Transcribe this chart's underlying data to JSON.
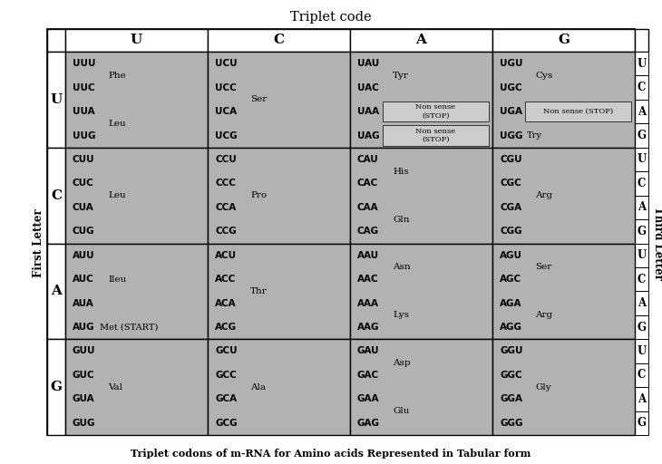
{
  "title": "Triplet code",
  "subtitle": "Triplet codons of m-RNA for Amino acids Represented in Tabular form",
  "gray": "#b2b2b2",
  "white": "#ffffff",
  "stop_gray": "#cccccc",
  "first_letter_label": "First Letter",
  "third_letter_label": "Third Letter",
  "col_headers": [
    "U",
    "C",
    "A",
    "G"
  ],
  "row_headers": [
    "U",
    "C",
    "A",
    "G"
  ],
  "third_labels": [
    "U",
    "C",
    "A",
    "G"
  ],
  "cells": {
    "UU": {
      "codons": [
        "UUU",
        "UUC",
        "UUA",
        "UUG"
      ],
      "groups": [
        {
          "idx": [
            0,
            1
          ],
          "aa": "Phe"
        },
        {
          "idx": [
            2,
            3
          ],
          "aa": "Leu"
        }
      ]
    },
    "UC": {
      "codons": [
        "UCU",
        "UCC",
        "UCA",
        "UCG"
      ],
      "groups": [
        {
          "idx": [
            0,
            1,
            2,
            3
          ],
          "aa": "Ser"
        }
      ]
    },
    "UA": {
      "codons": [
        "UAU",
        "UAC",
        "UAA",
        "UAG"
      ],
      "groups": [
        {
          "idx": [
            0,
            1
          ],
          "aa": "Tyr"
        },
        {
          "idx": [
            2
          ],
          "aa": "Non sense\n(STOP)",
          "stop": true
        },
        {
          "idx": [
            3
          ],
          "aa": "Non sense\n(STOP)",
          "stop": true
        }
      ]
    },
    "UG": {
      "codons": [
        "UGU",
        "UGC",
        "UGA",
        "UGG"
      ],
      "groups": [
        {
          "idx": [
            0,
            1
          ],
          "aa": "Cys"
        },
        {
          "idx": [
            2
          ],
          "aa": "Non sense (STOP)",
          "stop": true,
          "inline": true
        },
        {
          "idx": [
            3
          ],
          "aa": "Try",
          "bare": true
        }
      ]
    },
    "CU": {
      "codons": [
        "CUU",
        "CUC",
        "CUA",
        "CUG"
      ],
      "groups": [
        {
          "idx": [
            0,
            1,
            2,
            3
          ],
          "aa": "Leu"
        }
      ]
    },
    "CC": {
      "codons": [
        "CCU",
        "CCC",
        "CCA",
        "CCG"
      ],
      "groups": [
        {
          "idx": [
            0,
            1,
            2,
            3
          ],
          "aa": "Pro"
        }
      ]
    },
    "CA": {
      "codons": [
        "CAU",
        "CAC",
        "CAA",
        "CAG"
      ],
      "groups": [
        {
          "idx": [
            0,
            1
          ],
          "aa": "His"
        },
        {
          "idx": [
            2,
            3
          ],
          "aa": "Gln"
        }
      ]
    },
    "CG": {
      "codons": [
        "CGU",
        "CGC",
        "CGA",
        "CGG"
      ],
      "groups": [
        {
          "idx": [
            0,
            1,
            2,
            3
          ],
          "aa": "Arg"
        }
      ]
    },
    "AU": {
      "codons": [
        "AUU",
        "AUC",
        "AUA",
        "AUG"
      ],
      "groups": [
        {
          "idx": [
            0,
            1,
            2
          ],
          "aa": "Ileu"
        },
        {
          "idx": [
            3
          ],
          "aa": "Met (START)",
          "bare": true
        }
      ]
    },
    "AC": {
      "codons": [
        "ACU",
        "ACC",
        "ACA",
        "ACG"
      ],
      "groups": [
        {
          "idx": [
            0,
            1,
            2,
            3
          ],
          "aa": "Thr"
        }
      ]
    },
    "AA": {
      "codons": [
        "AAU",
        "AAC",
        "AAA",
        "AAG"
      ],
      "groups": [
        {
          "idx": [
            0,
            1
          ],
          "aa": "Asn"
        },
        {
          "idx": [
            2,
            3
          ],
          "aa": "Lys"
        }
      ]
    },
    "AG": {
      "codons": [
        "AGU",
        "AGC",
        "AGA",
        "AGG"
      ],
      "groups": [
        {
          "idx": [
            0,
            1
          ],
          "aa": "Ser"
        },
        {
          "idx": [
            2,
            3
          ],
          "aa": "Arg"
        }
      ]
    },
    "GU": {
      "codons": [
        "GUU",
        "GUC",
        "GUA",
        "GUG"
      ],
      "groups": [
        {
          "idx": [
            0,
            1,
            2,
            3
          ],
          "aa": "Val"
        }
      ]
    },
    "GC": {
      "codons": [
        "GCU",
        "GCC",
        "GCA",
        "GCG"
      ],
      "groups": [
        {
          "idx": [
            0,
            1,
            2,
            3
          ],
          "aa": "Ala"
        }
      ]
    },
    "GA": {
      "codons": [
        "GAU",
        "GAC",
        "GAA",
        "GAG"
      ],
      "groups": [
        {
          "idx": [
            0,
            1
          ],
          "aa": "Asp"
        },
        {
          "idx": [
            2,
            3
          ],
          "aa": "Glu"
        }
      ]
    },
    "GG": {
      "codons": [
        "GGU",
        "GGC",
        "GGA",
        "GGG"
      ],
      "groups": [
        {
          "idx": [
            0,
            1,
            2,
            3
          ],
          "aa": "Gly"
        }
      ]
    }
  }
}
